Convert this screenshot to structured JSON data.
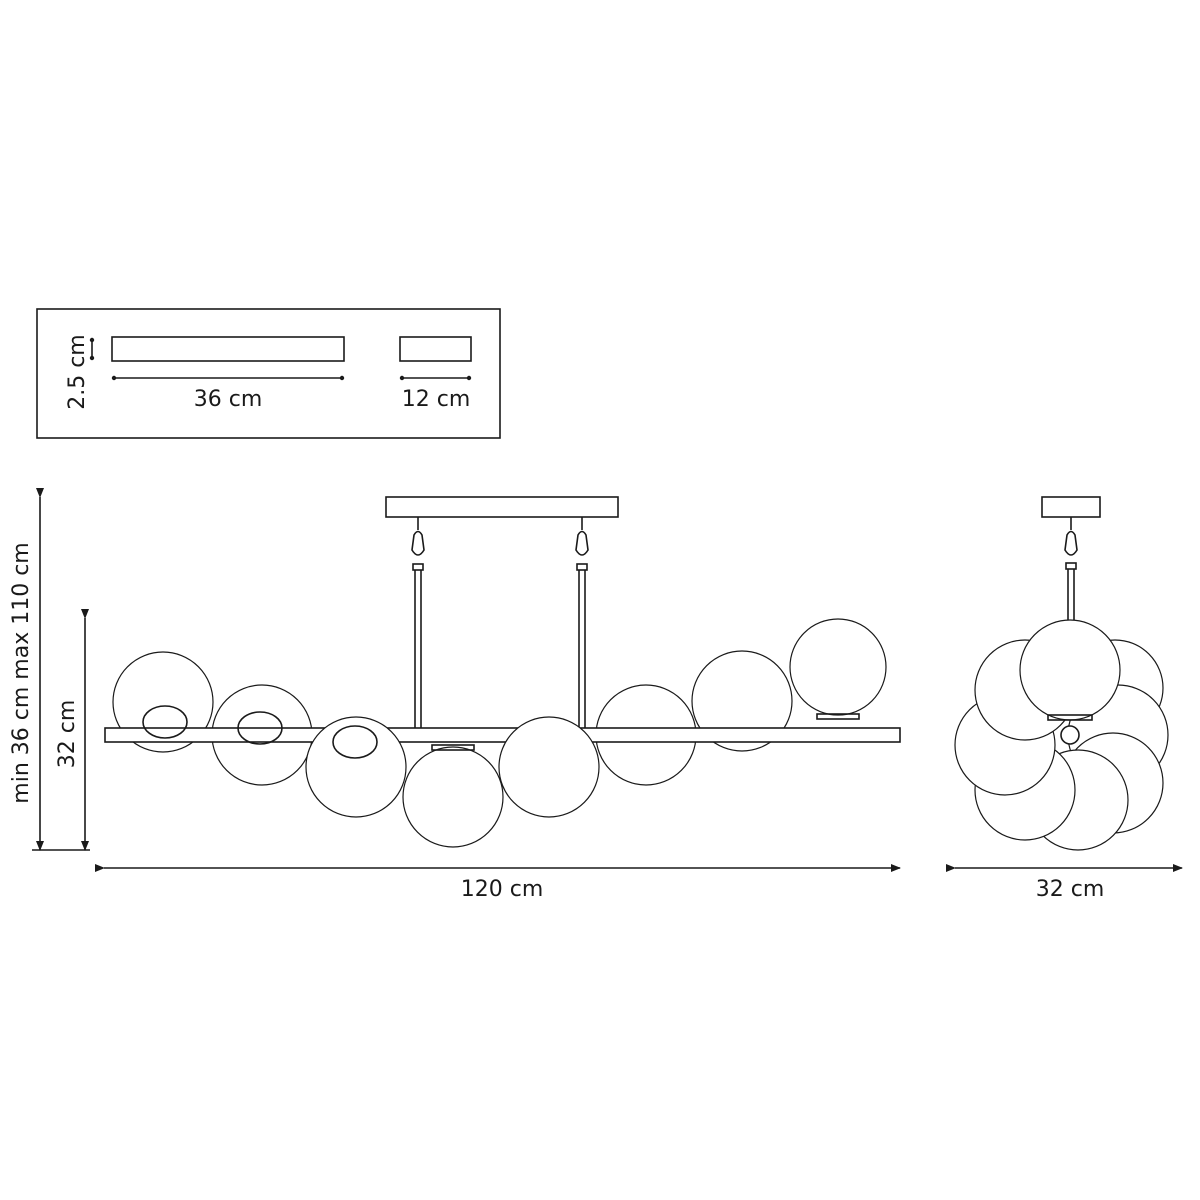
{
  "canopy_inset": {
    "height_label": "2.5 cm",
    "length_label": "36 cm",
    "width_label": "12 cm"
  },
  "front_view": {
    "height_range_label": "min 36 cm max 110 cm",
    "body_height_label": "32 cm",
    "width_label": "120 cm"
  },
  "side_view": {
    "width_label": "32 cm"
  },
  "line_color": "#1a1a1a"
}
